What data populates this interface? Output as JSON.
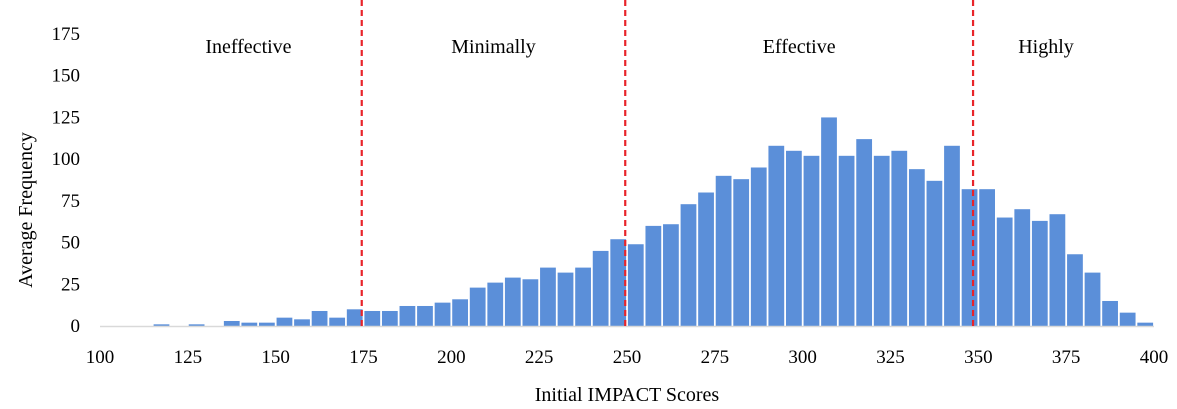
{
  "chart_data": {
    "type": "bar",
    "xlabel": "Initial  IMPACT Scores",
    "ylabel": "Average Frequency",
    "xlim": [
      100,
      400
    ],
    "ylim": [
      0,
      175
    ],
    "xticks": [
      "100",
      "125",
      "150",
      "175",
      "200",
      "225",
      "250",
      "275",
      "300",
      "325",
      "350",
      "375",
      "400"
    ],
    "yticks": [
      "0",
      "25",
      "50",
      "75",
      "100",
      "125",
      "150",
      "175"
    ],
    "bar_width": 5,
    "x": [
      102.5,
      107.5,
      112.5,
      117.5,
      122.5,
      127.5,
      132.5,
      137.5,
      142.5,
      147.5,
      152.5,
      157.5,
      162.5,
      167.5,
      172.5,
      177.5,
      182.5,
      187.5,
      192.5,
      197.5,
      202.5,
      207.5,
      212.5,
      217.5,
      222.5,
      227.5,
      232.5,
      237.5,
      242.5,
      247.5,
      252.5,
      257.5,
      262.5,
      267.5,
      272.5,
      277.5,
      282.5,
      287.5,
      292.5,
      297.5,
      302.5,
      307.5,
      312.5,
      317.5,
      322.5,
      327.5,
      332.5,
      337.5,
      342.5,
      347.5,
      352.5,
      357.5,
      362.5,
      367.5,
      372.5,
      377.5,
      382.5,
      387.5,
      392.5,
      397.5
    ],
    "values": [
      0,
      0,
      0,
      1,
      0,
      1,
      0,
      3,
      2,
      2,
      5,
      4,
      9,
      5,
      10,
      9,
      9,
      12,
      12,
      14,
      16,
      23,
      26,
      29,
      28,
      35,
      32,
      35,
      45,
      52,
      49,
      60,
      61,
      73,
      80,
      90,
      88,
      95,
      108,
      105,
      102,
      125,
      102,
      112,
      102,
      105,
      94,
      87,
      108,
      82,
      82,
      65,
      70,
      63,
      67,
      43,
      32,
      15,
      8,
      2
    ],
    "bar_color": "#5B8FD9",
    "thresholds": [
      174.5,
      249.5,
      348.5
    ],
    "threshold_color": "#E8242A",
    "regions": [
      "Ineffective",
      "Minimally",
      "Effective",
      "Highly"
    ],
    "grid": false,
    "legend": "none"
  }
}
